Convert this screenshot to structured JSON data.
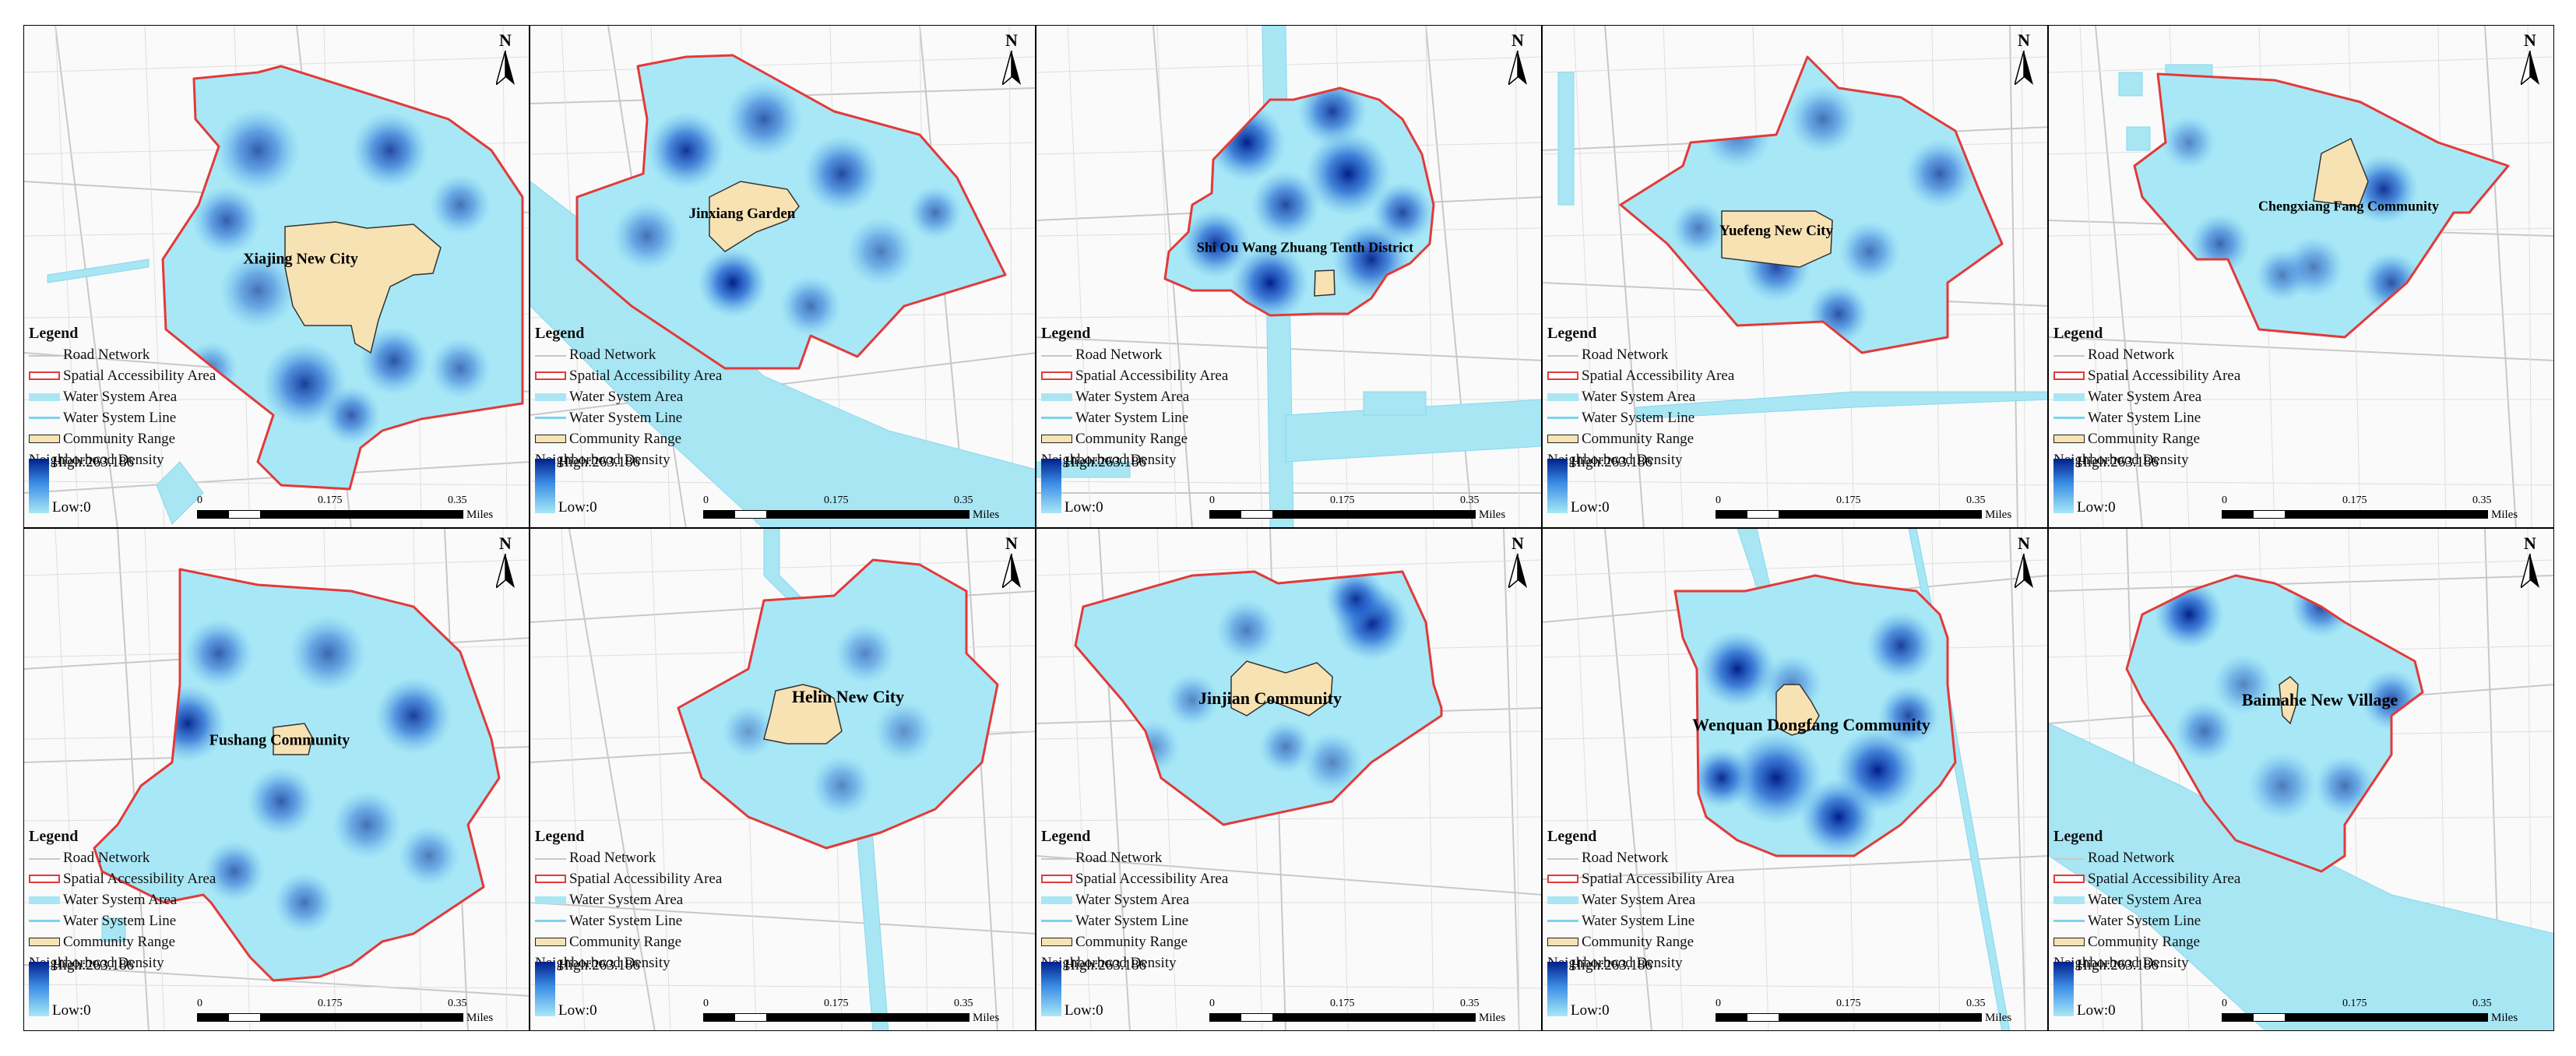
{
  "legend": {
    "title": "Legend",
    "road_network": "Road Network",
    "spatial_accessibility_area": "Spatial Accessibility Area",
    "water_system_area": "Water System Area",
    "water_system_line": "Water System Line",
    "community_range": "Community Range",
    "neighborhood_density": "Neighborhood Density",
    "high": "High:263.186",
    "low": "Low:0"
  },
  "north_label": "N",
  "scale": {
    "zero": "0",
    "mid": "0.175",
    "max": "0.35",
    "unit": "Miles"
  },
  "colors": {
    "low_density": "#a8e8f6",
    "high_density": "#001f8a",
    "boundary": "#e23a3a",
    "community": "#f7e2b4",
    "water": "#a8e6f4",
    "road": "#c8c8c8"
  },
  "panels": [
    {
      "community": "Xiajing New City"
    },
    {
      "community": "Jinxiang Garden"
    },
    {
      "community": "Shi Ou Wang Zhuang Tenth District"
    },
    {
      "community": "Yuefeng New City"
    },
    {
      "community": "Chengxiang Fang Community"
    },
    {
      "community": "Fushang Community"
    },
    {
      "community": "Helin New City"
    },
    {
      "community": "Jinjian Community"
    },
    {
      "community": "Wenquan Dongfang Community"
    },
    {
      "community": "Baimahe New Village"
    }
  ]
}
